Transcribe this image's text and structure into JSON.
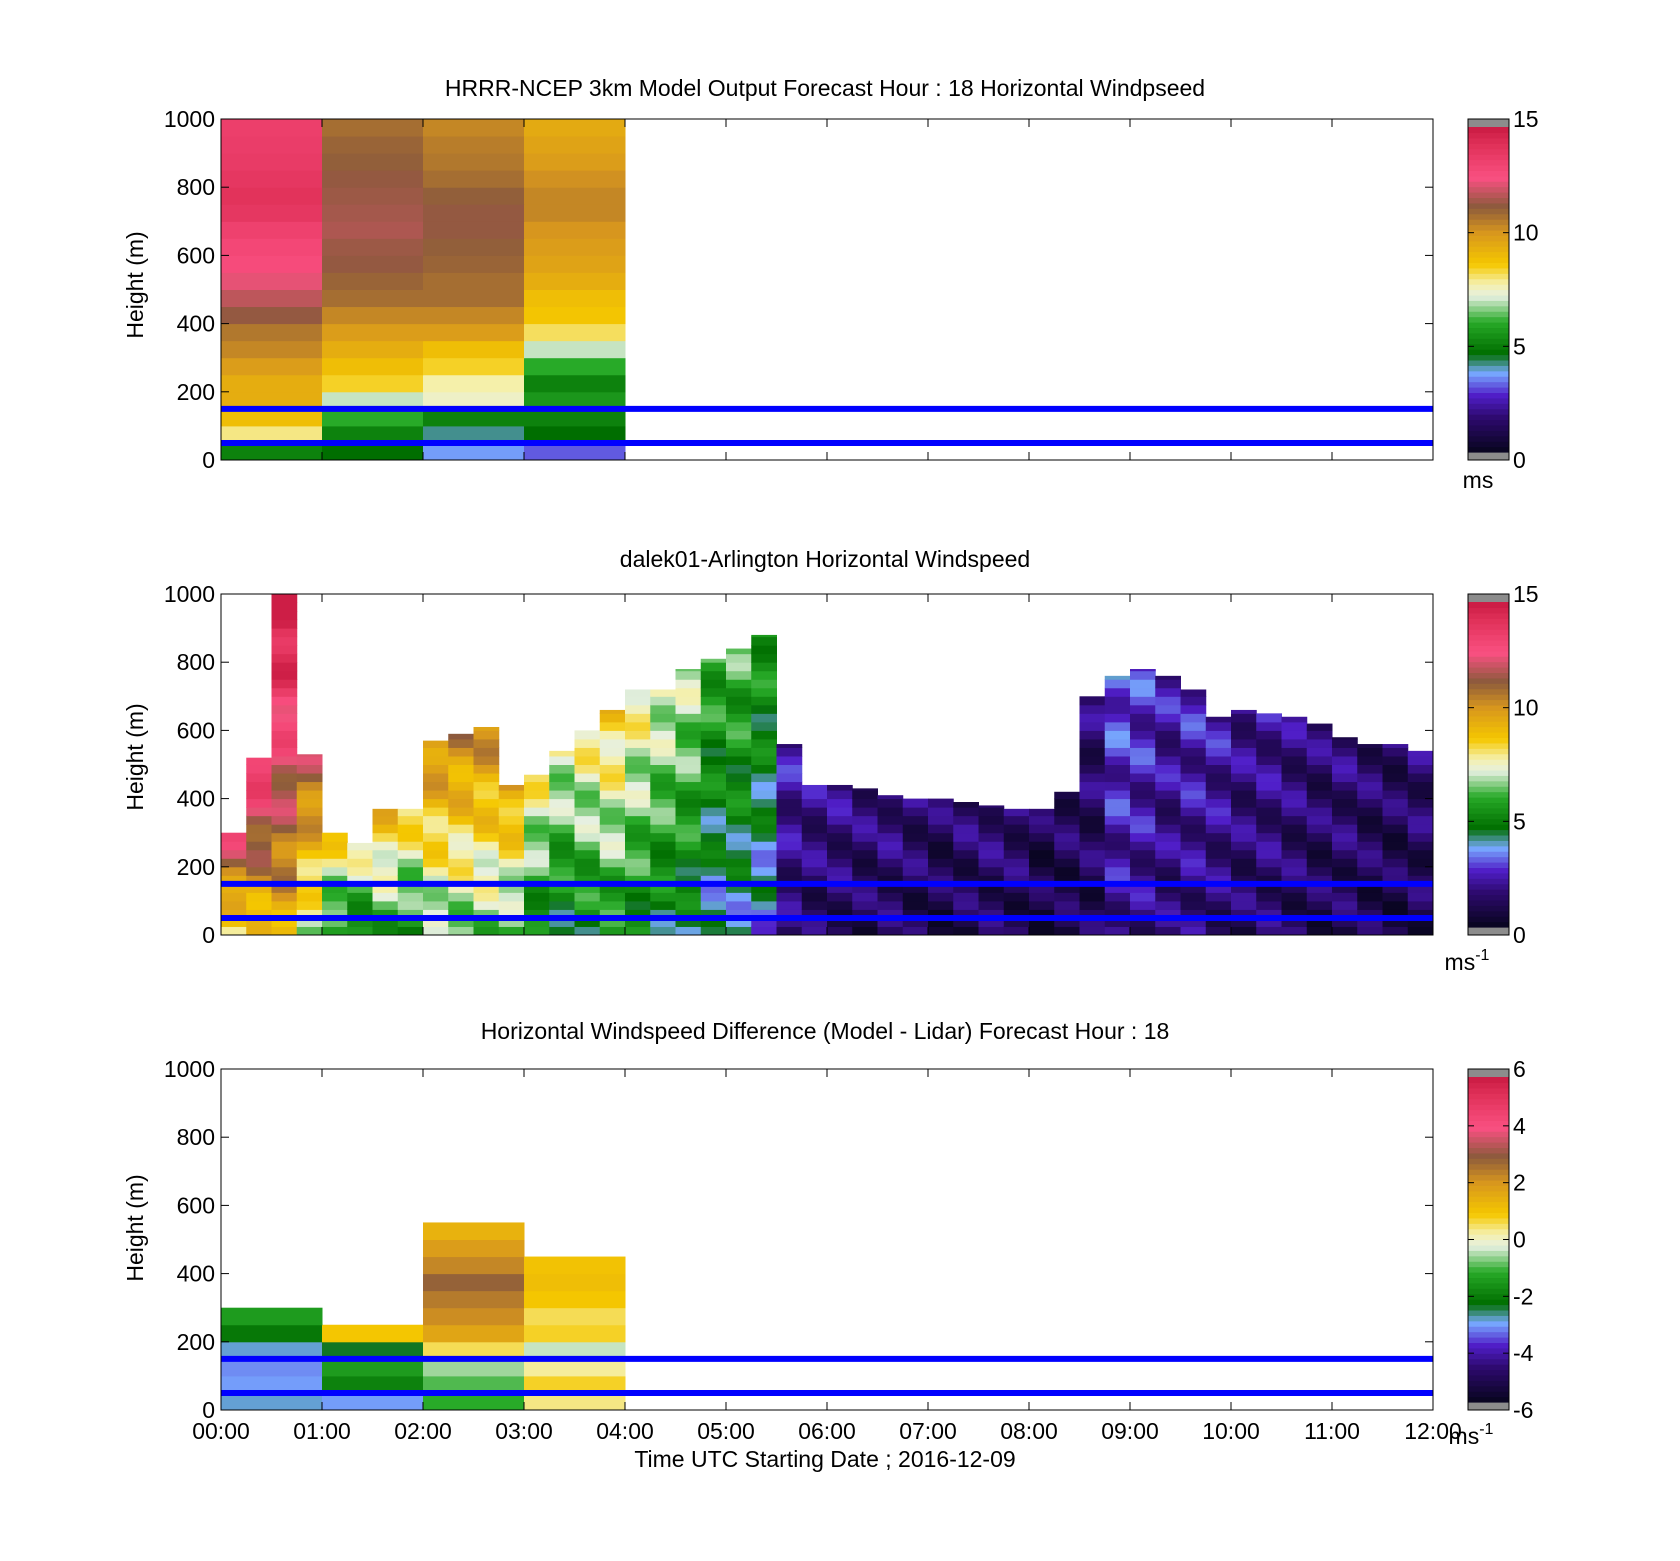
{
  "figure": {
    "xlabel": "Time UTC  Starting Date ; 2016-12-09",
    "x_ticks": [
      "00:00",
      "01:00",
      "02:00",
      "03:00",
      "04:00",
      "05:00",
      "06:00",
      "07:00",
      "08:00",
      "09:00",
      "10:00",
      "11:00",
      "12:00"
    ],
    "y_ticks": [
      "0",
      "200",
      "400",
      "600",
      "800",
      "1000"
    ]
  },
  "colors": {
    "reference_lines": "#0000ff",
    "axes": "#000000"
  },
  "chart_data": [
    {
      "type": "heatmap",
      "title": "HRRR-NCEP 3km Model Output   Forecast Hour : 18 Horizontal Windpseed",
      "ylabel": "Height (m)",
      "xlim_hours": [
        0,
        12
      ],
      "ylim": [
        0,
        1000
      ],
      "colorbar": {
        "ticks": [
          "0",
          "5",
          "10",
          "15"
        ],
        "range": [
          0,
          15
        ],
        "unit": "ms"
      },
      "reference_heights": [
        50,
        150
      ],
      "columns_start_hour": [
        0,
        1,
        2,
        3
      ],
      "column_width_hours": 1,
      "heights": [
        25,
        75,
        125,
        175,
        225,
        275,
        325,
        375,
        425,
        475,
        525,
        575,
        625,
        675,
        725,
        775,
        825,
        875,
        925,
        975
      ],
      "values": [
        [
          5.0,
          4.5,
          3.5,
          3.0
        ],
        [
          8.0,
          5.0,
          4.0,
          4.5
        ],
        [
          9.0,
          6.0,
          5.0,
          5.0
        ],
        [
          9.5,
          7.0,
          7.5,
          5.5
        ],
        [
          9.5,
          8.5,
          7.8,
          5.0
        ],
        [
          10.0,
          9.0,
          8.5,
          6.0
        ],
        [
          10.5,
          9.5,
          9.0,
          7.0
        ],
        [
          10.8,
          10.0,
          10.0,
          8.2
        ],
        [
          11.5,
          10.5,
          10.5,
          8.8
        ],
        [
          12.0,
          11.0,
          11.0,
          9.0
        ],
        [
          12.5,
          11.2,
          11.0,
          9.5
        ],
        [
          13.0,
          11.5,
          11.2,
          9.8
        ],
        [
          13.2,
          11.6,
          11.3,
          10.0
        ],
        [
          13.5,
          11.8,
          11.5,
          10.2
        ],
        [
          14.0,
          11.7,
          11.5,
          10.5
        ],
        [
          14.2,
          11.6,
          11.3,
          10.5
        ],
        [
          14.0,
          11.5,
          11.0,
          10.3
        ],
        [
          13.8,
          11.3,
          10.8,
          10.0
        ],
        [
          13.7,
          11.2,
          10.7,
          9.8
        ],
        [
          13.6,
          11.0,
          10.5,
          9.6
        ]
      ]
    },
    {
      "type": "heatmap",
      "title": "dalek01-Arlington  Horizontal Windspeed",
      "ylabel": "Height (m)",
      "xlim_hours": [
        0,
        12
      ],
      "ylim": [
        0,
        1000
      ],
      "colorbar": {
        "ticks": [
          "0",
          "5",
          "10",
          "15"
        ],
        "range": [
          0,
          15
        ],
        "unit": "ms",
        "unit_superscript": "-1"
      },
      "reference_heights": [
        50,
        150
      ],
      "columns_start_hour": [
        0.0,
        0.25,
        0.5,
        0.75,
        1.0,
        1.25,
        1.5,
        1.75,
        2.0,
        2.25,
        2.5,
        2.75,
        3.0,
        3.25,
        3.5,
        3.75,
        4.0,
        4.25,
        4.5,
        4.75,
        5.0,
        5.25,
        5.5,
        5.75,
        6.0,
        6.25,
        6.5,
        6.75,
        7.0,
        7.25,
        7.5,
        7.75,
        8.0,
        8.25,
        8.5,
        8.75,
        9.0,
        9.25,
        9.5,
        9.75,
        10.0,
        10.25,
        10.5,
        10.75,
        11.0,
        11.25,
        11.5,
        11.75
      ],
      "column_width_hours": 0.25,
      "column_top_heights": [
        300,
        520,
        1000,
        530,
        300,
        270,
        370,
        370,
        570,
        590,
        610,
        440,
        470,
        540,
        600,
        660,
        720,
        720,
        780,
        810,
        840,
        880,
        560,
        440,
        440,
        430,
        410,
        400,
        400,
        390,
        380,
        370,
        370,
        420,
        700,
        760,
        780,
        760,
        720,
        640,
        660,
        650,
        640,
        620,
        580,
        560,
        560,
        540
      ],
      "column_mean_speed": [
        10.5,
        11.5,
        12.5,
        9.5,
        7.0,
        6.5,
        7.5,
        7.0,
        8.5,
        8.5,
        8.5,
        8.0,
        6.5,
        6.0,
        6.5,
        7.0,
        6.5,
        6.0,
        5.8,
        4.8,
        5.0,
        4.5,
        1.8,
        1.5,
        1.5,
        1.3,
        1.4,
        1.2,
        1.0,
        1.2,
        1.3,
        1.2,
        0.8,
        1.0,
        1.2,
        2.4,
        2.2,
        1.8,
        2.0,
        1.8,
        1.5,
        1.6,
        1.4,
        1.2,
        1.3,
        1.1,
        1.0,
        1.2
      ]
    },
    {
      "type": "heatmap",
      "title": "Horizontal Windspeed Difference (Model - Lidar) Forecast Hour : 18",
      "ylabel": "Height (m)",
      "xlim_hours": [
        0,
        12
      ],
      "ylim": [
        0,
        1000
      ],
      "colorbar": {
        "ticks": [
          "-6",
          "-4",
          "-2",
          "0",
          "2",
          "4",
          "6"
        ],
        "range": [
          -6,
          6
        ],
        "unit": "ms",
        "unit_superscript": "-1"
      },
      "reference_heights": [
        50,
        150
      ],
      "columns_start_hour": [
        0,
        1,
        2,
        3
      ],
      "column_width_hours": 1,
      "column_top_heights": [
        300,
        225,
        550,
        440
      ],
      "heights": [
        25,
        75,
        125,
        175,
        225,
        275,
        325,
        375,
        425,
        475,
        525
      ],
      "values": [
        [
          -3.0,
          -3.2,
          -1.2,
          0.4
        ],
        [
          -3.2,
          -2.0,
          -1.0,
          0.8
        ],
        [
          -3.3,
          -1.5,
          -0.6,
          0.3
        ],
        [
          -3.0,
          -2.5,
          0.6,
          -0.4
        ],
        [
          -2.2,
          1.0,
          1.8,
          0.8
        ],
        [
          -1.5,
          null,
          2.3,
          0.6
        ],
        [
          null,
          null,
          2.6,
          1.0
        ],
        [
          null,
          null,
          3.0,
          1.2
        ],
        [
          null,
          null,
          2.4,
          1.1
        ],
        [
          null,
          null,
          2.0,
          null
        ],
        [
          null,
          null,
          1.5,
          null
        ]
      ]
    }
  ]
}
